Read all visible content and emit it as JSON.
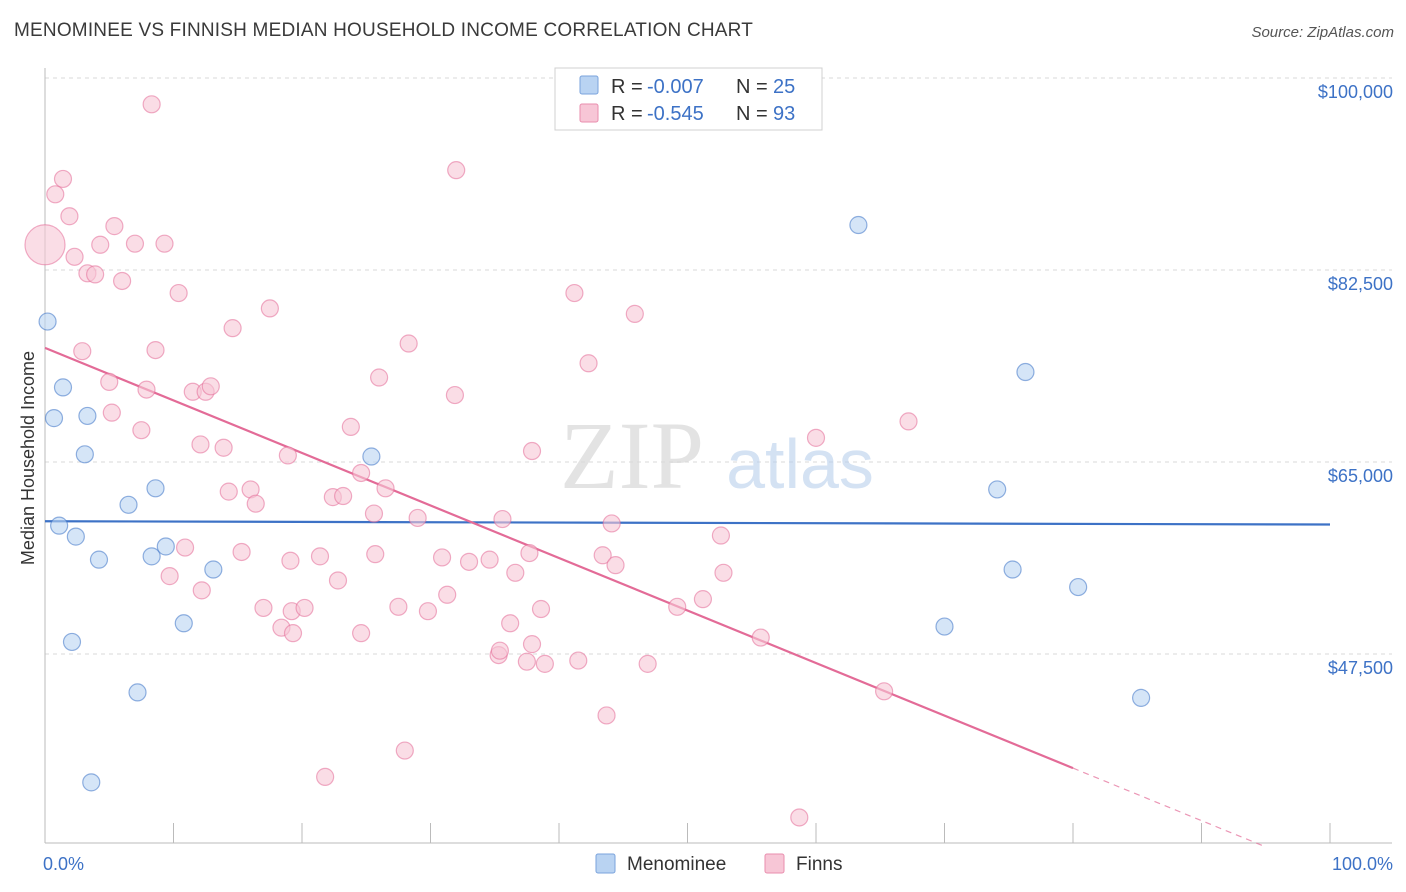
{
  "title": "MENOMINEE VS FINNISH MEDIAN HOUSEHOLD INCOME CORRELATION CHART",
  "source": "Source: ZipAtlas.com",
  "watermark": {
    "zip": "ZIP",
    "atlas": "atlas"
  },
  "colors": {
    "blue": "#3d72c6",
    "blue_fill": "#b9d3f2",
    "pink": "#e36b97",
    "pink_fill": "#f7c6d6",
    "grid": "#d9d9d9",
    "axis_text": "#3d72c6"
  },
  "legend": {
    "rows": [
      {
        "r_label": "R =",
        "r_value": "-0.007",
        "n_label": "N =",
        "n_value": "25",
        "series": "menominee"
      },
      {
        "r_label": "R =",
        "r_value": "-0.545",
        "n_label": "N =",
        "n_value": "93",
        "series": "finns"
      }
    ]
  },
  "bottom_legend": [
    "Menominee",
    "Finns"
  ],
  "chart_data": {
    "type": "scatter",
    "title": "MENOMINEE VS FINNISH MEDIAN HOUSEHOLD INCOME CORRELATION CHART",
    "xlabel": "",
    "ylabel": "Median Household Income",
    "xlim": [
      0,
      100
    ],
    "ylim": [
      30000,
      102000
    ],
    "x_tick_labels": [
      "0.0%",
      "100.0%"
    ],
    "y_ticks": [
      47500,
      65000,
      82500,
      100000
    ],
    "y_tick_labels": [
      "$47,500",
      "$65,000",
      "$82,500",
      "$100,000"
    ],
    "series": [
      {
        "name": "Menominee",
        "color": "#3d72c6",
        "fill": "#b9d3f2",
        "trend": {
          "x0": 0,
          "y0": 59600,
          "x1": 100,
          "y1": 59300,
          "dash_from": 100
        },
        "points": [
          {
            "x": 0.2,
            "y": 77800
          },
          {
            "x": 1.4,
            "y": 71800
          },
          {
            "x": 0.7,
            "y": 69000
          },
          {
            "x": 3.3,
            "y": 69200
          },
          {
            "x": 3.1,
            "y": 65700
          },
          {
            "x": 6.5,
            "y": 61100
          },
          {
            "x": 8.6,
            "y": 62600
          },
          {
            "x": 1.1,
            "y": 59200
          },
          {
            "x": 2.4,
            "y": 58200
          },
          {
            "x": 4.2,
            "y": 56100
          },
          {
            "x": 8.3,
            "y": 56400
          },
          {
            "x": 9.4,
            "y": 57300
          },
          {
            "x": 13.1,
            "y": 55200
          },
          {
            "x": 10.8,
            "y": 50300
          },
          {
            "x": 2.1,
            "y": 48600
          },
          {
            "x": 7.2,
            "y": 44000
          },
          {
            "x": 3.6,
            "y": 35800
          },
          {
            "x": 25.4,
            "y": 65500
          },
          {
            "x": 63.3,
            "y": 86600
          },
          {
            "x": 76.3,
            "y": 73200
          },
          {
            "x": 74.1,
            "y": 62500
          },
          {
            "x": 75.3,
            "y": 55200
          },
          {
            "x": 80.4,
            "y": 53600
          },
          {
            "x": 70.0,
            "y": 50000
          },
          {
            "x": 85.3,
            "y": 43500
          }
        ]
      },
      {
        "name": "Finns",
        "color": "#e36b97",
        "fill": "#f7c6d6",
        "trend": {
          "x0": 0,
          "y0": 75400,
          "x1": 80,
          "y1": 37100,
          "dash_from": 80,
          "dash_to": 95
        },
        "points": [
          {
            "x": 8.3,
            "y": 97600
          },
          {
            "x": 1.4,
            "y": 90800
          },
          {
            "x": 0.8,
            "y": 89400
          },
          {
            "x": 1.9,
            "y": 87400
          },
          {
            "x": 5.4,
            "y": 86500
          },
          {
            "x": 0.0,
            "y": 84800,
            "big": true
          },
          {
            "x": 4.3,
            "y": 84800
          },
          {
            "x": 7.0,
            "y": 84900
          },
          {
            "x": 9.3,
            "y": 84900
          },
          {
            "x": 2.3,
            "y": 83700
          },
          {
            "x": 3.3,
            "y": 82200
          },
          {
            "x": 3.9,
            "y": 82100
          },
          {
            "x": 6.0,
            "y": 81500
          },
          {
            "x": 10.4,
            "y": 80400
          },
          {
            "x": 17.5,
            "y": 79000
          },
          {
            "x": 14.6,
            "y": 77200
          },
          {
            "x": 28.3,
            "y": 75800
          },
          {
            "x": 2.9,
            "y": 75100
          },
          {
            "x": 8.6,
            "y": 75200
          },
          {
            "x": 5.0,
            "y": 72300
          },
          {
            "x": 7.9,
            "y": 71600
          },
          {
            "x": 11.5,
            "y": 71400
          },
          {
            "x": 12.5,
            "y": 71400
          },
          {
            "x": 12.9,
            "y": 71900
          },
          {
            "x": 26.0,
            "y": 72700
          },
          {
            "x": 31.9,
            "y": 71100
          },
          {
            "x": 42.3,
            "y": 74000
          },
          {
            "x": 5.2,
            "y": 69500
          },
          {
            "x": 7.5,
            "y": 67900
          },
          {
            "x": 12.1,
            "y": 66600
          },
          {
            "x": 13.9,
            "y": 66300
          },
          {
            "x": 23.8,
            "y": 68200
          },
          {
            "x": 18.9,
            "y": 65600
          },
          {
            "x": 37.9,
            "y": 66000
          },
          {
            "x": 60.0,
            "y": 67200
          },
          {
            "x": 67.2,
            "y": 68700
          },
          {
            "x": 14.3,
            "y": 62300
          },
          {
            "x": 16.0,
            "y": 62500
          },
          {
            "x": 16.4,
            "y": 61200
          },
          {
            "x": 22.4,
            "y": 61800
          },
          {
            "x": 23.2,
            "y": 61900
          },
          {
            "x": 24.6,
            "y": 64000
          },
          {
            "x": 26.5,
            "y": 62600
          },
          {
            "x": 25.6,
            "y": 60300
          },
          {
            "x": 29.0,
            "y": 59900
          },
          {
            "x": 10.9,
            "y": 57200
          },
          {
            "x": 15.3,
            "y": 56800
          },
          {
            "x": 19.1,
            "y": 56000
          },
          {
            "x": 21.4,
            "y": 56400
          },
          {
            "x": 25.7,
            "y": 56600
          },
          {
            "x": 30.9,
            "y": 56300
          },
          {
            "x": 33.0,
            "y": 55900
          },
          {
            "x": 34.6,
            "y": 56100
          },
          {
            "x": 37.7,
            "y": 56700
          },
          {
            "x": 43.4,
            "y": 56500
          },
          {
            "x": 44.4,
            "y": 55600
          },
          {
            "x": 52.6,
            "y": 58300
          },
          {
            "x": 9.7,
            "y": 54600
          },
          {
            "x": 12.2,
            "y": 53300
          },
          {
            "x": 22.8,
            "y": 54200
          },
          {
            "x": 36.6,
            "y": 54900
          },
          {
            "x": 52.8,
            "y": 54900
          },
          {
            "x": 17.0,
            "y": 51700
          },
          {
            "x": 19.2,
            "y": 51400
          },
          {
            "x": 20.2,
            "y": 51700
          },
          {
            "x": 27.5,
            "y": 51800
          },
          {
            "x": 29.8,
            "y": 51400
          },
          {
            "x": 31.3,
            "y": 52900
          },
          {
            "x": 38.6,
            "y": 51600
          },
          {
            "x": 49.2,
            "y": 51800
          },
          {
            "x": 51.2,
            "y": 52500
          },
          {
            "x": 18.4,
            "y": 49900
          },
          {
            "x": 19.3,
            "y": 49400
          },
          {
            "x": 24.6,
            "y": 49400
          },
          {
            "x": 36.2,
            "y": 50300
          },
          {
            "x": 37.9,
            "y": 48400
          },
          {
            "x": 55.7,
            "y": 49000
          },
          {
            "x": 35.3,
            "y": 47400
          },
          {
            "x": 35.4,
            "y": 47800
          },
          {
            "x": 37.5,
            "y": 46800
          },
          {
            "x": 38.9,
            "y": 46600
          },
          {
            "x": 41.5,
            "y": 46900
          },
          {
            "x": 46.9,
            "y": 46600
          },
          {
            "x": 65.3,
            "y": 44100
          },
          {
            "x": 43.7,
            "y": 41900
          },
          {
            "x": 28.0,
            "y": 38700
          },
          {
            "x": 21.8,
            "y": 36300
          },
          {
            "x": 58.7,
            "y": 32600
          },
          {
            "x": 32.0,
            "y": 91600
          },
          {
            "x": 41.2,
            "y": 80400
          },
          {
            "x": 44.1,
            "y": 59400
          },
          {
            "x": 45.9,
            "y": 78500
          },
          {
            "x": 35.6,
            "y": 59800
          }
        ]
      }
    ]
  }
}
